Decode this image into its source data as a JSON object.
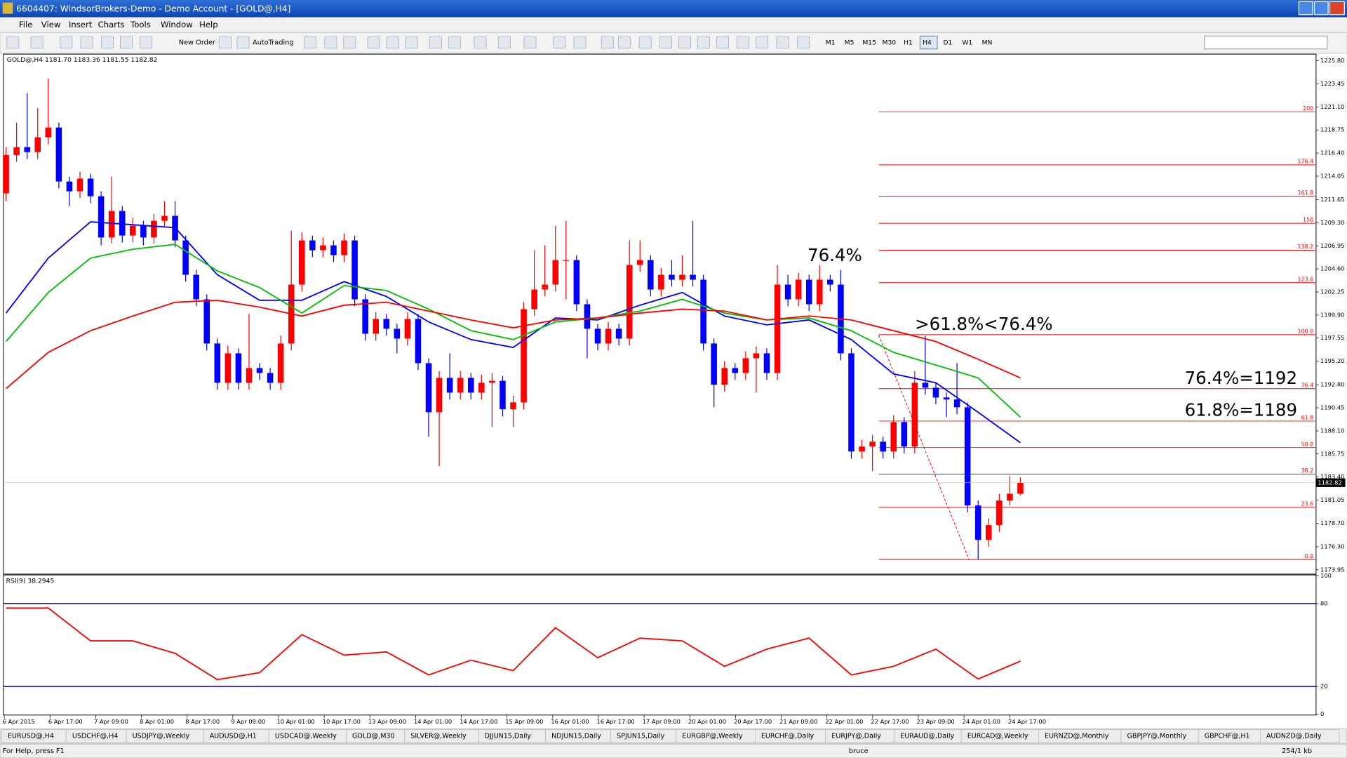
{
  "window": {
    "title": "6604407: WindsorBrokers-Demo - Demo Account - [GOLD@,H4]"
  },
  "menu": [
    "File",
    "View",
    "Insert",
    "Charts",
    "Tools",
    "Window",
    "Help"
  ],
  "toolbar": {
    "new_order": "New Order",
    "autotrading": "AutoTrading",
    "timeframes": [
      "M1",
      "M5",
      "M15",
      "M30",
      "H1",
      "H4",
      "D1",
      "W1",
      "MN"
    ],
    "active_timeframe": "H4"
  },
  "chart_data": {
    "type": "candlestick",
    "header": "GOLD@,H4  1181.70 1183.36 1181.55 1182.82",
    "colors": {
      "up": "#ff0000",
      "down": "#0000ff"
    },
    "open": [
      1212.3,
      1216.2,
      1217.0,
      1216.5,
      1218.0,
      1219.0,
      1213.5,
      1212.5,
      1213.8,
      1212.0,
      1207.8,
      1210.5,
      1208.0,
      1209.0,
      1207.8,
      1209.5,
      1210.0,
      1207.5,
      1204.0,
      1201.5,
      1197.0,
      1193.0,
      1196.0,
      1193.0,
      1194.5,
      1194.0,
      1193.0,
      1197.0,
      1203.0,
      1207.5,
      1206.5,
      1207.0,
      1206.0,
      1207.5,
      1201.5,
      1198.0,
      1199.5,
      1198.5,
      1197.5,
      1199.5,
      1195.0,
      1190.0,
      1193.5,
      1192.0,
      1193.5,
      1192.0,
      1193.0,
      1193.2,
      1190.3,
      1191.0,
      1200.5,
      1202.5,
      1203.0,
      1205.5,
      1205.5,
      1201.0,
      1198.5,
      1197.0,
      1198.5,
      1197.5,
      1205.0,
      1205.5,
      1202.5,
      1204.0,
      1203.5,
      1204.0,
      1203.5,
      1197.0,
      1192.8,
      1194.5,
      1194.0,
      1195.5,
      1196.0,
      1194.0,
      1203.0,
      1201.5,
      1203.5,
      1201.0,
      1203.5,
      1203.0,
      1196.0,
      1186.0,
      1186.5,
      1187.0,
      1186.0,
      1189.0,
      1186.5,
      1193.0,
      1192.5,
      1191.5,
      1191.3,
      1190.5,
      1180.5,
      1177.0,
      1178.5,
      1181.0,
      1181.7
    ],
    "high": [
      1217.0,
      1219.5,
      1222.5,
      1221.0,
      1224.0,
      1219.5,
      1214.0,
      1214.5,
      1214.3,
      1212.5,
      1214.0,
      1211.0,
      1209.8,
      1209.5,
      1210.2,
      1211.5,
      1211.5,
      1208.0,
      1204.5,
      1202.0,
      1197.5,
      1196.8,
      1196.5,
      1200.0,
      1195.0,
      1194.5,
      1197.8,
      1208.5,
      1208.3,
      1208.0,
      1207.8,
      1207.5,
      1208.2,
      1208.0,
      1202.0,
      1200.2,
      1200.0,
      1199.0,
      1200.2,
      1200.0,
      1195.5,
      1194.2,
      1196.0,
      1194.2,
      1194.0,
      1193.8,
      1194.0,
      1193.7,
      1191.7,
      1201.2,
      1206.5,
      1207.0,
      1209.0,
      1209.5,
      1206.0,
      1201.5,
      1199.0,
      1199.2,
      1199.0,
      1207.5,
      1207.5,
      1206.0,
      1204.7,
      1205.5,
      1206.0,
      1209.5,
      1204.0,
      1197.5,
      1195.2,
      1195.0,
      1196.2,
      1196.7,
      1196.5,
      1205.0,
      1204.0,
      1204.2,
      1204.0,
      1205.0,
      1204.0,
      1204.5,
      1196.5,
      1187.2,
      1187.7,
      1187.5,
      1189.7,
      1189.5,
      1194.2,
      1197.8,
      1193.0,
      1192.0,
      1195.0,
      1191.0,
      1181.0,
      1179.2,
      1181.7,
      1183.5,
      1183.36
    ],
    "low": [
      1211.5,
      1215.5,
      1215.8,
      1215.8,
      1217.3,
      1212.8,
      1211.0,
      1211.8,
      1211.3,
      1207.0,
      1207.2,
      1207.3,
      1207.3,
      1207.0,
      1207.2,
      1208.8,
      1206.8,
      1203.3,
      1200.8,
      1196.3,
      1192.3,
      1192.3,
      1192.3,
      1192.3,
      1193.3,
      1192.3,
      1192.3,
      1196.3,
      1202.3,
      1205.8,
      1205.8,
      1205.3,
      1205.3,
      1200.8,
      1197.3,
      1197.3,
      1197.8,
      1196.0,
      1196.8,
      1194.3,
      1187.5,
      1184.5,
      1191.3,
      1191.3,
      1191.3,
      1191.3,
      1188.5,
      1189.6,
      1188.5,
      1190.3,
      1199.8,
      1201.8,
      1202.3,
      1201.5,
      1200.3,
      1195.5,
      1196.3,
      1196.3,
      1196.8,
      1196.8,
      1204.3,
      1201.8,
      1201.8,
      1202.8,
      1202.8,
      1202.8,
      1196.3,
      1190.5,
      1192.1,
      1193.3,
      1193.3,
      1192.0,
      1193.3,
      1193.3,
      1200.8,
      1200.8,
      1200.3,
      1200.3,
      1202.3,
      1195.3,
      1185.3,
      1185.3,
      1184.0,
      1185.3,
      1185.3,
      1185.8,
      1185.8,
      1191.8,
      1190.8,
      1189.5,
      1189.8,
      1179.8,
      1175.0,
      1176.3,
      1177.8,
      1180.5,
      1181.55
    ],
    "close": [
      1216.2,
      1217.0,
      1216.5,
      1218.0,
      1219.0,
      1213.5,
      1212.5,
      1213.8,
      1212.0,
      1207.8,
      1210.5,
      1208.0,
      1209.0,
      1207.8,
      1209.5,
      1210.0,
      1207.5,
      1204.0,
      1201.5,
      1197.0,
      1193.0,
      1196.0,
      1193.0,
      1194.5,
      1194.0,
      1193.0,
      1197.0,
      1203.0,
      1207.5,
      1206.5,
      1207.0,
      1206.0,
      1207.5,
      1201.5,
      1198.0,
      1199.5,
      1198.5,
      1197.5,
      1199.5,
      1195.0,
      1190.0,
      1193.5,
      1192.0,
      1193.5,
      1192.0,
      1193.0,
      1193.2,
      1190.3,
      1191.0,
      1200.5,
      1202.5,
      1203.0,
      1205.5,
      1205.5,
      1201.0,
      1198.5,
      1197.0,
      1198.5,
      1197.5,
      1205.0,
      1205.5,
      1202.5,
      1204.0,
      1203.5,
      1204.0,
      1203.5,
      1197.0,
      1192.8,
      1194.5,
      1194.0,
      1195.5,
      1196.0,
      1194.0,
      1203.0,
      1201.5,
      1203.5,
      1201.0,
      1203.5,
      1203.0,
      1196.0,
      1186.0,
      1186.5,
      1187.0,
      1186.0,
      1189.0,
      1186.5,
      1193.0,
      1192.5,
      1191.5,
      1191.3,
      1190.5,
      1180.5,
      1177.0,
      1178.5,
      1181.0,
      1181.7,
      1182.82
    ],
    "ylim": [
      1173.6,
      1226.3
    ],
    "yticks": [
      {
        "value": 1225.8,
        "label": "1225.80"
      },
      1223.45,
      {
        "value": 1221.1,
        "label": "1221.10"
      },
      1218.75,
      {
        "value": 1216.4,
        "label": "1216.40"
      },
      1214.05,
      1211.65,
      {
        "value": 1209.3,
        "label": "1209.30"
      },
      1206.95,
      {
        "value": 1204.6,
        "label": "1204.60"
      },
      1202.25,
      {
        "value": 1199.9,
        "label": "1199.90"
      },
      1197.55,
      {
        "value": 1195.2,
        "label": "1195.20"
      },
      {
        "value": 1192.8,
        "label": "1192.80"
      },
      1190.45,
      {
        "value": 1188.1,
        "label": "1188.10"
      },
      1185.75,
      {
        "value": 1183.4,
        "label": "1183.40"
      },
      1181.05,
      {
        "value": 1178.7,
        "label": "1178.70"
      },
      {
        "value": 1176.3,
        "label": "1176.30"
      },
      1173.95
    ],
    "current_price": 1182.82,
    "x_labels": [
      "6 Apr 2015",
      "6 Apr 17:00",
      "7 Apr 09:00",
      "8 Apr 01:00",
      "8 Apr 17:00",
      "9 Apr 09:00",
      "10 Apr 01:00",
      "10 Apr 17:00",
      "13 Apr 09:00",
      "14 Apr 01:00",
      "14 Apr 17:00",
      "15 Apr 09:00",
      "16 Apr 01:00",
      "16 Apr 17:00",
      "17 Apr 09:00",
      "20 Apr 01:00",
      "20 Apr 17:00",
      "21 Apr 09:00",
      "22 Apr 01:00",
      "22 Apr 17:00",
      "23 Apr 09:00",
      "24 Apr 01:00",
      "24 Apr 17:00"
    ],
    "indicator_x": [
      0,
      4,
      8,
      12,
      16,
      20,
      24,
      28,
      32,
      36,
      40,
      44,
      48,
      52,
      56,
      60,
      64,
      68,
      72,
      76,
      80,
      84,
      88,
      92,
      96
    ],
    "moving_averages": [
      {
        "color": "#0000ff",
        "values": [
          1200.1,
          1205.7,
          1209.4,
          1209.1,
          1208.8,
          1204.0,
          1201.4,
          1201.4,
          1203.3,
          1201.8,
          1199.2,
          1197.4,
          1196.6,
          1199.6,
          1199.4,
          1200.9,
          1202.2,
          1199.8,
          1198.9,
          1199.4,
          1197.4,
          1193.9,
          1193.0,
          1190.0,
          1186.9
        ]
      },
      {
        "color": "#00c000",
        "values": [
          1197.2,
          1202.2,
          1205.7,
          1206.6,
          1207.1,
          1204.4,
          1202.7,
          1200.1,
          1202.9,
          1202.4,
          1200.5,
          1198.3,
          1197.4,
          1199.2,
          1199.6,
          1200.3,
          1201.5,
          1200.1,
          1199.4,
          1199.6,
          1198.3,
          1196.1,
          1194.8,
          1193.5,
          1189.5
        ]
      },
      {
        "color": "#ff0000",
        "values": [
          1192.4,
          1196.1,
          1198.3,
          1199.8,
          1201.2,
          1201.4,
          1200.7,
          1199.8,
          1200.9,
          1201.2,
          1200.3,
          1199.4,
          1198.6,
          1199.4,
          1199.6,
          1200.1,
          1200.5,
          1200.3,
          1199.4,
          1199.8,
          1199.4,
          1198.3,
          1197.2,
          1195.4,
          1193.5
        ]
      }
    ],
    "fib_levels": [
      {
        "label": "200",
        "price": 1220.6
      },
      {
        "label": "176.4",
        "price": 1215.2
      },
      {
        "label": "161.8",
        "price": 1212.0
      },
      {
        "label": "150",
        "price": 1209.25
      },
      {
        "label": "138.2",
        "price": 1206.5
      },
      {
        "label": "123.6",
        "price": 1203.2
      },
      {
        "label": "100.0",
        "price": 1197.9
      },
      {
        "label": "76.4",
        "price": 1192.4
      },
      {
        "label": "61.8",
        "price": 1189.1
      },
      {
        "label": "50.0",
        "price": 1186.4
      },
      {
        "label": "38.2",
        "price": 1183.7
      },
      {
        "label": "23.6",
        "price": 1180.3
      },
      {
        "label": "0.0",
        "price": 1175.0
      }
    ],
    "annotations": [
      "76.4%",
      ">61.8%<76.4%",
      "76.4%=1192",
      "61.8%=1189"
    ]
  },
  "rsi": {
    "header": "RSI(9) 38.2945",
    "color": "#ff0000",
    "level_color": "#0000aa",
    "ylim": [
      0,
      100
    ],
    "yticks": [
      100,
      80,
      20,
      0
    ],
    "levels": [
      80,
      20
    ],
    "values": [
      76.7,
      76.7,
      53,
      53,
      44,
      25,
      30,
      57.5,
      42.7,
      45,
      28.4,
      39,
      31.5,
      62.5,
      40.8,
      55,
      53,
      34.6,
      47,
      55,
      28.4,
      34.6,
      47,
      25.4,
      38.2945
    ]
  },
  "tabs": [
    "EURUSD@,H4",
    "USDCHF@,H4",
    "USDJPY@,Weekly",
    "AUDUSD@,H1",
    "USDCAD@,Weekly",
    "GOLD@,M30",
    "SILVER@,Weekly",
    "DJJUN15,Daily",
    "NDJUN15,Daily",
    "SPJUN15,Daily",
    "EURGBP@,Weekly",
    "EURCHF@,Daily",
    "EURJPY@,Daily",
    "EURAUD@,Daily",
    "EURCAD@,Weekly",
    "EURNZD@,Monthly",
    "GBPJPY@,Monthly",
    "GBPCHF@,H1",
    "AUDNZD@,Daily"
  ],
  "status": {
    "help": "For Help, press F1",
    "profile": "bruce",
    "traffic": "254/1 kb"
  }
}
